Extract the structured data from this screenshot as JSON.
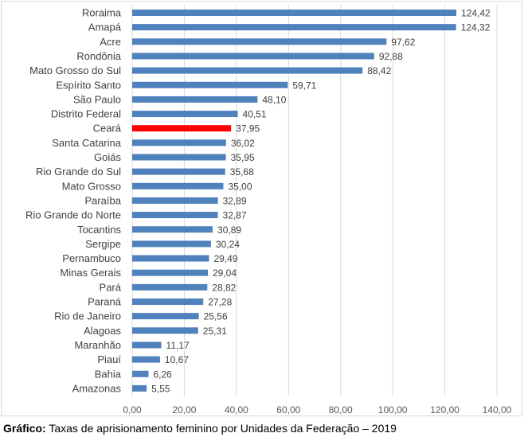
{
  "chart_data": {
    "type": "bar",
    "orientation": "horizontal",
    "categories": [
      "Roraima",
      "Amapá",
      "Acre",
      "Rondônia",
      "Mato Grosso do Sul",
      "Espírito Santo",
      "São Paulo",
      "Distrito Federal",
      "Ceará",
      "Santa Catarina",
      "Goiás",
      "Rio Grande do Sul",
      "Mato Grosso",
      "Paraíba",
      "Rio Grande do Norte",
      "Tocantins",
      "Sergipe",
      "Pernambuco",
      "Minas Gerais",
      "Pará",
      "Paraná",
      "Rio de Janeiro",
      "Alagoas",
      "Maranhão",
      "Piauí",
      "Bahia",
      "Amazonas"
    ],
    "values": [
      124.42,
      124.32,
      97.62,
      92.88,
      88.42,
      59.71,
      48.1,
      40.51,
      37.95,
      36.02,
      35.95,
      35.68,
      35.0,
      32.89,
      32.87,
      30.89,
      30.24,
      29.49,
      29.04,
      28.82,
      27.28,
      25.56,
      25.31,
      11.17,
      10.67,
      6.26,
      5.55
    ],
    "value_labels": [
      "124,42",
      "124,32",
      "97,62",
      "92,88",
      "88,42",
      "59,71",
      "48,10",
      "40,51",
      "37,95",
      "36,02",
      "35,95",
      "35,68",
      "35,00",
      "32,89",
      "32,87",
      "30,89",
      "30,24",
      "29,49",
      "29,04",
      "28,82",
      "27,28",
      "25,56",
      "25,31",
      "11,17",
      "10,67",
      "6,26",
      "5,55"
    ],
    "x_ticks": [
      "0,00",
      "20,00",
      "40,00",
      "60,00",
      "80,00",
      "100,00",
      "120,00",
      "140,00"
    ],
    "xlim": [
      0,
      140
    ],
    "highlight": "Ceará",
    "grid": true,
    "colors": {
      "bar": "#4f81bd",
      "highlight": "#ff0000",
      "grid": "#d9d9d9"
    }
  },
  "caption": {
    "prefix": "Gráfico:",
    "text": " Taxas de aprisionamento feminino por Unidades da Federação – 2019"
  }
}
